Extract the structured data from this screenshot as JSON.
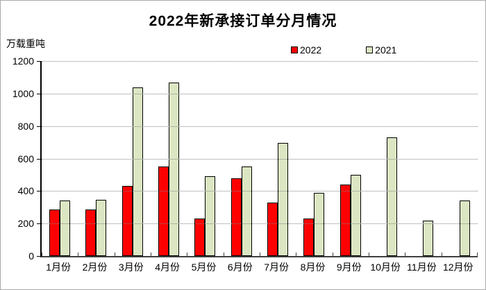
{
  "chart": {
    "title": "2022年新承接订单分月情况",
    "unit_label": "万载重吨"
  },
  "chart_data": {
    "type": "bar",
    "title": "2022年新承接订单分月情况",
    "ylabel": "万载重吨",
    "categories": [
      "1月份",
      "2月份",
      "3月份",
      "4月份",
      "5月份",
      "6月份",
      "7月份",
      "8月份",
      "9月份",
      "10月份",
      "11月份",
      "12月份"
    ],
    "series": [
      {
        "name": "2022",
        "color": "#ff0000",
        "values": [
          285,
          285,
          430,
          550,
          230,
          478,
          330,
          232,
          440,
          null,
          null,
          null
        ]
      },
      {
        "name": "2021",
        "color": "#dce6c3",
        "values": [
          340,
          344,
          1037,
          1067,
          490,
          551,
          698,
          390,
          500,
          731,
          219,
          340
        ]
      }
    ],
    "ylim": [
      0,
      1200
    ],
    "yticks": [
      0,
      200,
      400,
      600,
      800,
      1000,
      1200
    ],
    "grid": "horizontal-dotted",
    "legend_position": "top-center",
    "axis_color": "#000000",
    "gridline_color": "#828282"
  }
}
